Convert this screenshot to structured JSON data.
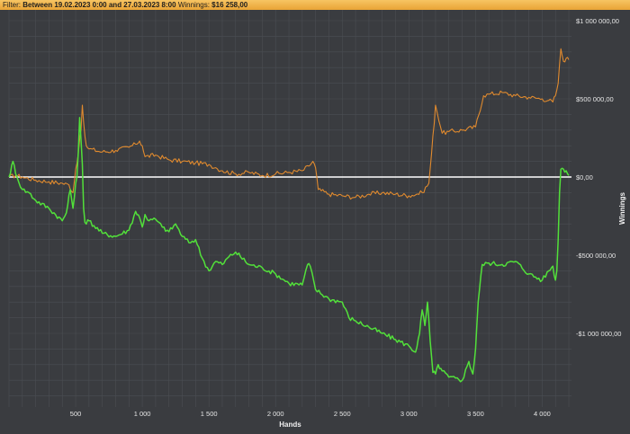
{
  "filter_bar": {
    "filter_label": "Filter:",
    "filter_value": "Between 19.02.2023 0:00 and 27.03.2023 8:00",
    "winnings_label": "Winnings:",
    "winnings_value": "$16 258,00"
  },
  "colors": {
    "background": "#3a3c40",
    "grid": "#4b4e53",
    "zero_line": "#ffffff",
    "orange_series": "#e08a2e",
    "green_series": "#52e03a"
  },
  "chart_data": {
    "type": "line",
    "xlabel": "Hands",
    "ylabel": "Winnings",
    "xlim": [
      0,
      4220
    ],
    "ylim": [
      -1400000,
      1000000
    ],
    "x_ticks": [
      500,
      1000,
      1500,
      2000,
      2500,
      3000,
      3500,
      4000
    ],
    "x_tick_labels": [
      "500",
      "1 000",
      "1 500",
      "2 000",
      "2 500",
      "3 000",
      "3 500",
      "4 000"
    ],
    "y_ticks": [
      1000000,
      500000,
      0,
      -500000,
      -1000000
    ],
    "y_tick_labels": [
      "$1 000 000,00",
      "$500 000,00",
      "$0,00",
      "-$500 000,00",
      "-$1 000 000,00"
    ],
    "grid": true,
    "legend": "none",
    "zero_line": true,
    "series": [
      {
        "color": "#e08a2e",
        "x": [
          0,
          50,
          100,
          200,
          300,
          400,
          450,
          480,
          500,
          520,
          540,
          550,
          560,
          570,
          580,
          600,
          700,
          800,
          900,
          950,
          980,
          1000,
          1020,
          1100,
          1200,
          1300,
          1400,
          1500,
          1550,
          1600,
          1700,
          1800,
          1900,
          2000,
          2100,
          2200,
          2250,
          2280,
          2300,
          2320,
          2400,
          2500,
          2600,
          2700,
          2800,
          2900,
          3000,
          3100,
          3150,
          3170,
          3200,
          3250,
          3300,
          3400,
          3500,
          3560,
          3600,
          3700,
          3800,
          3900,
          4000,
          4050,
          4080,
          4100,
          4120,
          4140,
          4160,
          4180,
          4200
        ],
        "y": [
          0,
          10000,
          0,
          -20000,
          -30000,
          -40000,
          -50000,
          -100000,
          50000,
          150000,
          300000,
          460000,
          350000,
          260000,
          200000,
          180000,
          160000,
          170000,
          190000,
          210000,
          230000,
          200000,
          130000,
          140000,
          110000,
          100000,
          90000,
          80000,
          60000,
          40000,
          20000,
          30000,
          10000,
          20000,
          30000,
          40000,
          70000,
          100000,
          60000,
          -80000,
          -110000,
          -120000,
          -130000,
          -110000,
          -100000,
          -110000,
          -120000,
          -100000,
          -40000,
          150000,
          460000,
          280000,
          290000,
          300000,
          320000,
          520000,
          530000,
          540000,
          520000,
          510000,
          500000,
          490000,
          480000,
          520000,
          600000,
          820000,
          740000,
          760000,
          750000
        ]
      },
      {
        "color": "#52e03a",
        "x": [
          0,
          30,
          60,
          100,
          150,
          200,
          300,
          400,
          430,
          460,
          480,
          490,
          500,
          510,
          520,
          530,
          540,
          550,
          560,
          570,
          600,
          700,
          800,
          900,
          950,
          980,
          1000,
          1020,
          1050,
          1100,
          1150,
          1200,
          1250,
          1300,
          1350,
          1400,
          1450,
          1500,
          1550,
          1600,
          1650,
          1700,
          1800,
          1900,
          2000,
          2100,
          2200,
          2240,
          2260,
          2300,
          2400,
          2500,
          2550,
          2600,
          2700,
          2800,
          2900,
          3000,
          3050,
          3080,
          3100,
          3120,
          3140,
          3160,
          3180,
          3200,
          3220,
          3250,
          3300,
          3400,
          3450,
          3480,
          3500,
          3520,
          3550,
          3600,
          3700,
          3800,
          3900,
          4000,
          4050,
          4080,
          4100,
          4110,
          4120,
          4130,
          4140,
          4160,
          4180,
          4200
        ],
        "y": [
          0,
          100000,
          0,
          -80000,
          -100000,
          -150000,
          -200000,
          -280000,
          -230000,
          -80000,
          -200000,
          -130000,
          -40000,
          0,
          160000,
          380000,
          240000,
          80000,
          -200000,
          -290000,
          -280000,
          -360000,
          -380000,
          -340000,
          -220000,
          -260000,
          -320000,
          -240000,
          -280000,
          -270000,
          -320000,
          -350000,
          -300000,
          -380000,
          -420000,
          -400000,
          -520000,
          -600000,
          -540000,
          -560000,
          -510000,
          -480000,
          -560000,
          -580000,
          -620000,
          -680000,
          -690000,
          -560000,
          -570000,
          -720000,
          -780000,
          -800000,
          -900000,
          -920000,
          -960000,
          -1000000,
          -1040000,
          -1080000,
          -1120000,
          -1000000,
          -850000,
          -950000,
          -800000,
          -1050000,
          -1250000,
          -1260000,
          -1200000,
          -1240000,
          -1280000,
          -1300000,
          -1180000,
          -1260000,
          -1100000,
          -800000,
          -560000,
          -550000,
          -560000,
          -540000,
          -620000,
          -660000,
          -600000,
          -570000,
          -660000,
          -600000,
          -400000,
          -100000,
          50000,
          50000,
          40000,
          10000
        ]
      }
    ]
  }
}
